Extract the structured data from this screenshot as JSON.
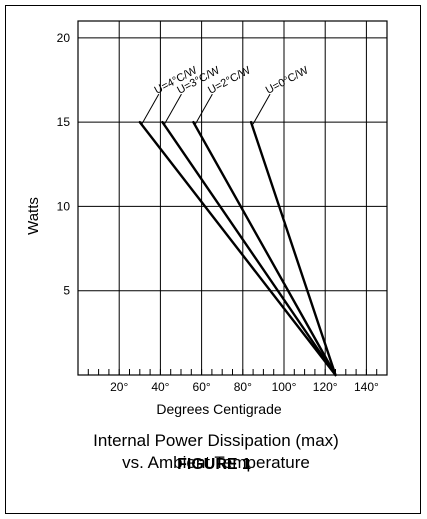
{
  "chart_data": {
    "type": "line",
    "title_line1": "Internal Power Dissipation (max)",
    "title_line2": "vs. Ambient Temperature",
    "caption": "FIGURE 1",
    "xlabel": "Degrees Centigrade",
    "ylabel": "Watts",
    "xlim": [
      0,
      150
    ],
    "ylim": [
      0,
      21
    ],
    "x_ticks": [
      {
        "value": 20,
        "label": "20°"
      },
      {
        "value": 40,
        "label": "40°"
      },
      {
        "value": 60,
        "label": "60°"
      },
      {
        "value": 80,
        "label": "80°"
      },
      {
        "value": 100,
        "label": "100°"
      },
      {
        "value": 120,
        "label": "120°"
      },
      {
        "value": 140,
        "label": "140°"
      }
    ],
    "y_ticks": [
      {
        "value": 5,
        "label": "5"
      },
      {
        "value": 10,
        "label": "10"
      },
      {
        "value": 15,
        "label": "15"
      },
      {
        "value": 20,
        "label": "20"
      }
    ],
    "grid": true,
    "series": [
      {
        "name": "U=4°C/W",
        "points": [
          [
            30,
            15
          ],
          [
            125,
            0
          ]
        ]
      },
      {
        "name": "U=3°C/W",
        "points": [
          [
            41,
            15
          ],
          [
            125,
            0
          ]
        ]
      },
      {
        "name": "U=2°C/W",
        "points": [
          [
            56,
            15
          ],
          [
            125,
            0
          ]
        ]
      },
      {
        "name": "U=0°C/W",
        "points": [
          [
            84,
            15
          ],
          [
            125,
            0
          ]
        ]
      }
    ]
  }
}
